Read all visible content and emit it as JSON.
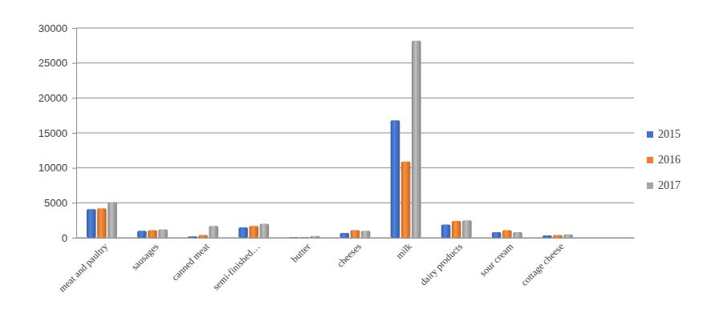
{
  "chart_data": {
    "type": "bar",
    "categories": [
      "meat and paultry",
      "sausages",
      "canned meat",
      "semi-finished…",
      "butter",
      "cheeses",
      "milk",
      "dairy products",
      "sour cream",
      "cottage cheese",
      null
    ],
    "series": [
      {
        "name": "2015",
        "color": "#4472c4",
        "values": [
          4100,
          1000,
          200,
          1500,
          50,
          700,
          16800,
          1900,
          800,
          350,
          null
        ]
      },
      {
        "name": "2016",
        "color": "#ed7d31",
        "values": [
          4200,
          1100,
          400,
          1700,
          100,
          1100,
          10900,
          2400,
          1100,
          400,
          null
        ]
      },
      {
        "name": "2017",
        "color": "#a5a5a5",
        "values": [
          5100,
          1200,
          1700,
          2000,
          250,
          1000,
          28200,
          2500,
          800,
          500,
          null
        ]
      }
    ],
    "ylim": [
      0,
      30000
    ],
    "yticks": [
      0,
      5000,
      10000,
      15000,
      20000,
      25000,
      30000
    ],
    "grid": true,
    "legend": "right"
  }
}
